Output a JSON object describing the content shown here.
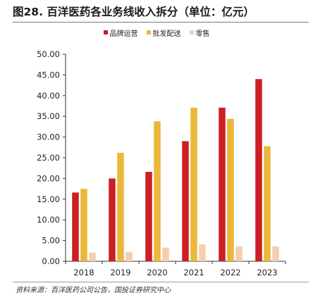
{
  "figure": {
    "title": "图28. 百洋医药各业务线收入拆分（单位：亿元）",
    "source": "资料来源：百洋医药公司公告，国投证券研究中心"
  },
  "chart_data": {
    "type": "bar",
    "categories": [
      "2018",
      "2019",
      "2020",
      "2021",
      "2022",
      "2023"
    ],
    "series": [
      {
        "name": "品牌运营",
        "color": "#cc1f24",
        "values": [
          16.6,
          20.0,
          21.6,
          29.0,
          37.1,
          44.0
        ]
      },
      {
        "name": "批发配送",
        "color": "#eab83a",
        "values": [
          17.5,
          26.2,
          33.8,
          37.1,
          34.4,
          27.8
        ]
      },
      {
        "name": "零售",
        "color": "#f7cdb0",
        "values": [
          2.1,
          2.3,
          3.3,
          4.1,
          3.6,
          3.6
        ]
      }
    ],
    "ylim": [
      0,
      50
    ],
    "yticks": [
      "0.00",
      "5.00",
      "10.00",
      "15.00",
      "20.00",
      "25.00",
      "30.00",
      "35.00",
      "40.00",
      "45.00",
      "50.00"
    ],
    "xlabel": "",
    "ylabel": "",
    "legend_position": "top",
    "grid": false
  }
}
